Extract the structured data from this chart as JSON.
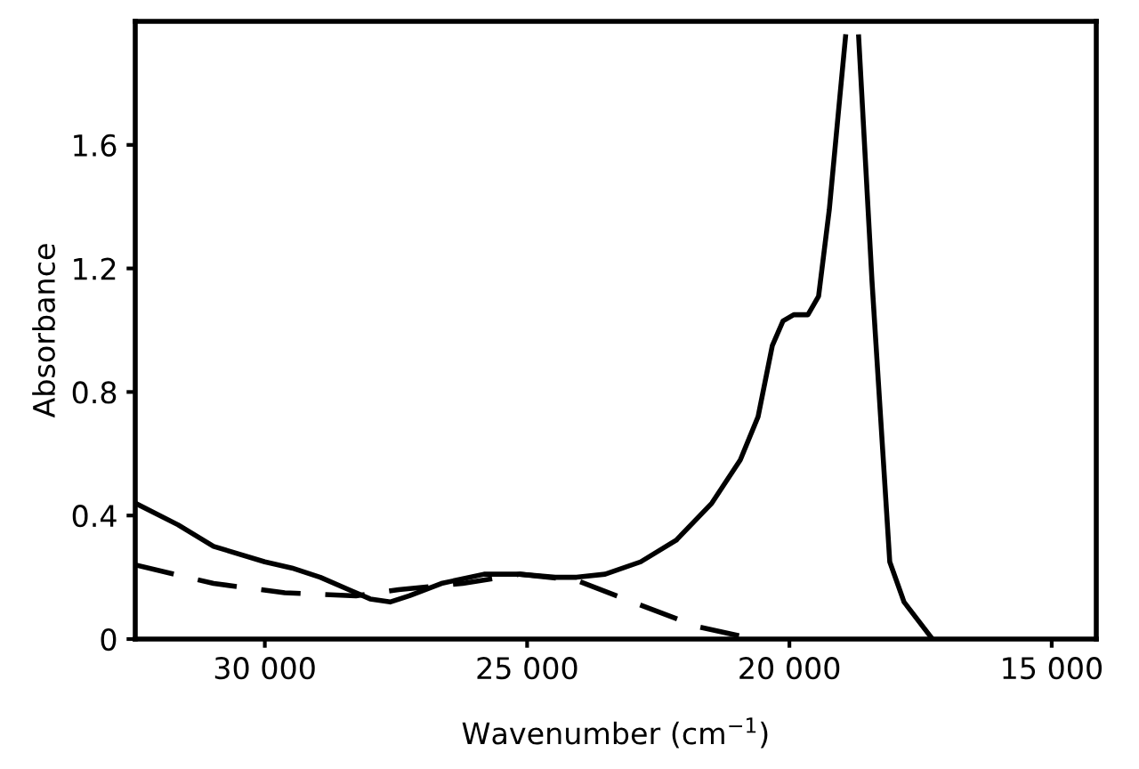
{
  "chart_data": {
    "type": "line",
    "xlabel": "Wavenumber (cm$^{−1}$)",
    "ylabel": "Absorbance",
    "xlim": [
      32470,
      14150
    ],
    "ylim": [
      0,
      2.0
    ],
    "xticks": [
      {
        "value": 30000,
        "label": "30 000"
      },
      {
        "value": 25000,
        "label": "25 000"
      },
      {
        "value": 20000,
        "label": "20 000"
      },
      {
        "value": 15000,
        "label": "15 000"
      }
    ],
    "yticks": [
      0,
      0.4,
      0.8,
      1.2,
      1.6
    ],
    "grid": false,
    "series": [
      {
        "color": "#000000",
        "line_style": "solid",
        "x": [
          32470,
          31655,
          30977,
          30000,
          29484,
          28942,
          28400,
          27992,
          27612,
          27245,
          26635,
          25821,
          25142,
          24464,
          24057,
          23514,
          22836,
          22157,
          21479,
          20936,
          20597,
          20326,
          20122,
          19918,
          19647,
          19444,
          19240,
          19036,
          18930,
          18800,
          18680,
          18426,
          18087,
          17815,
          17273
        ],
        "values": [
          0.44,
          0.37,
          0.3,
          0.25,
          0.23,
          0.2,
          0.16,
          0.13,
          0.12,
          0.14,
          0.18,
          0.21,
          0.21,
          0.2,
          0.2,
          0.21,
          0.25,
          0.32,
          0.44,
          0.58,
          0.72,
          0.95,
          1.03,
          1.05,
          1.05,
          1.11,
          1.39,
          1.76,
          1.95,
          null,
          1.95,
          1.16,
          0.25,
          0.12,
          0
        ]
      },
      {
        "color": "#000000",
        "line_style": "dashed",
        "x": [
          32470,
          30977,
          29620,
          28263,
          27449,
          26228,
          25142,
          24057,
          22836,
          21750,
          20665
        ],
        "values": [
          0.24,
          0.18,
          0.15,
          0.14,
          0.16,
          0.18,
          0.21,
          0.19,
          0.11,
          0.04,
          0
        ]
      }
    ]
  }
}
